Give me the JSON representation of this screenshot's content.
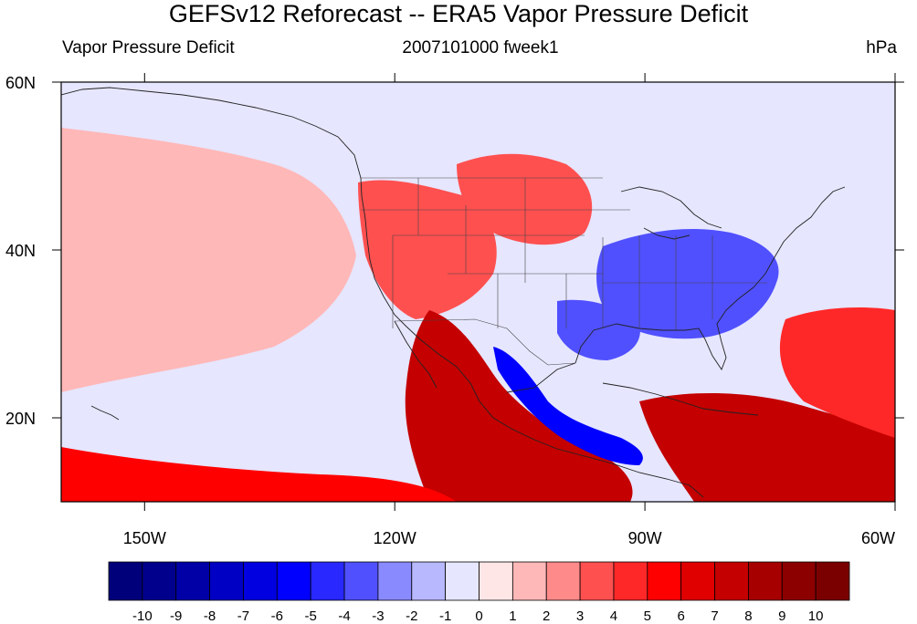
{
  "title": "GEFSv12 Reforecast -- ERA5 Vapor Pressure Deficit",
  "subtitle_left": "Vapor Pressure Deficit",
  "subtitle_center": "2007101000 fweek1",
  "subtitle_right": "hPa",
  "map": {
    "projection": "cylindrical equidistant",
    "lon_range": [
      -160,
      -60
    ],
    "lat_range": [
      10,
      60
    ],
    "lon_ticks": [
      {
        "value": -150,
        "label": "150W"
      },
      {
        "value": -120,
        "label": "120W"
      },
      {
        "value": -90,
        "label": "90W"
      },
      {
        "value": -60,
        "label": "60W"
      }
    ],
    "lat_ticks": [
      {
        "value": 60,
        "label": "60N"
      },
      {
        "value": 40,
        "label": "40N"
      },
      {
        "value": 20,
        "label": "20N"
      }
    ],
    "field_regions": [
      {
        "name": "positive-ne-pacific",
        "level": 1
      },
      {
        "name": "positive-west-us",
        "level": 3
      },
      {
        "name": "positive-northern-plains",
        "level": 3
      },
      {
        "name": "positive-mexico-pacific",
        "level": 7
      },
      {
        "name": "positive-southern-pacific-band",
        "level": 5
      },
      {
        "name": "positive-caribbean",
        "level": 7
      },
      {
        "name": "positive-atlantic",
        "level": 4
      },
      {
        "name": "negative-eastern-us",
        "level": -4
      },
      {
        "name": "negative-gulf-coast",
        "level": -4
      },
      {
        "name": "negative-central-mexico",
        "level": -6
      },
      {
        "name": "negative-pacific-pocket",
        "level": -1
      }
    ]
  },
  "colorbar": {
    "labels": [
      "-10",
      "-9",
      "-8",
      "-7",
      "-6",
      "-5",
      "-4",
      "-3",
      "-2",
      "-1",
      "0",
      "1",
      "2",
      "3",
      "4",
      "5",
      "6",
      "7",
      "8",
      "9",
      "10"
    ],
    "colors": [
      "#00007a",
      "#00008c",
      "#0000a6",
      "#0000c4",
      "#0000e0",
      "#0000ff",
      "#2828ff",
      "#5050ff",
      "#8a8aff",
      "#b8b8ff",
      "#e6e6ff",
      "#ffe6e6",
      "#ffb8b8",
      "#ff8a8a",
      "#ff5050",
      "#ff2828",
      "#ff0000",
      "#e00000",
      "#c40000",
      "#a60000",
      "#8c0000",
      "#7a0000"
    ]
  }
}
